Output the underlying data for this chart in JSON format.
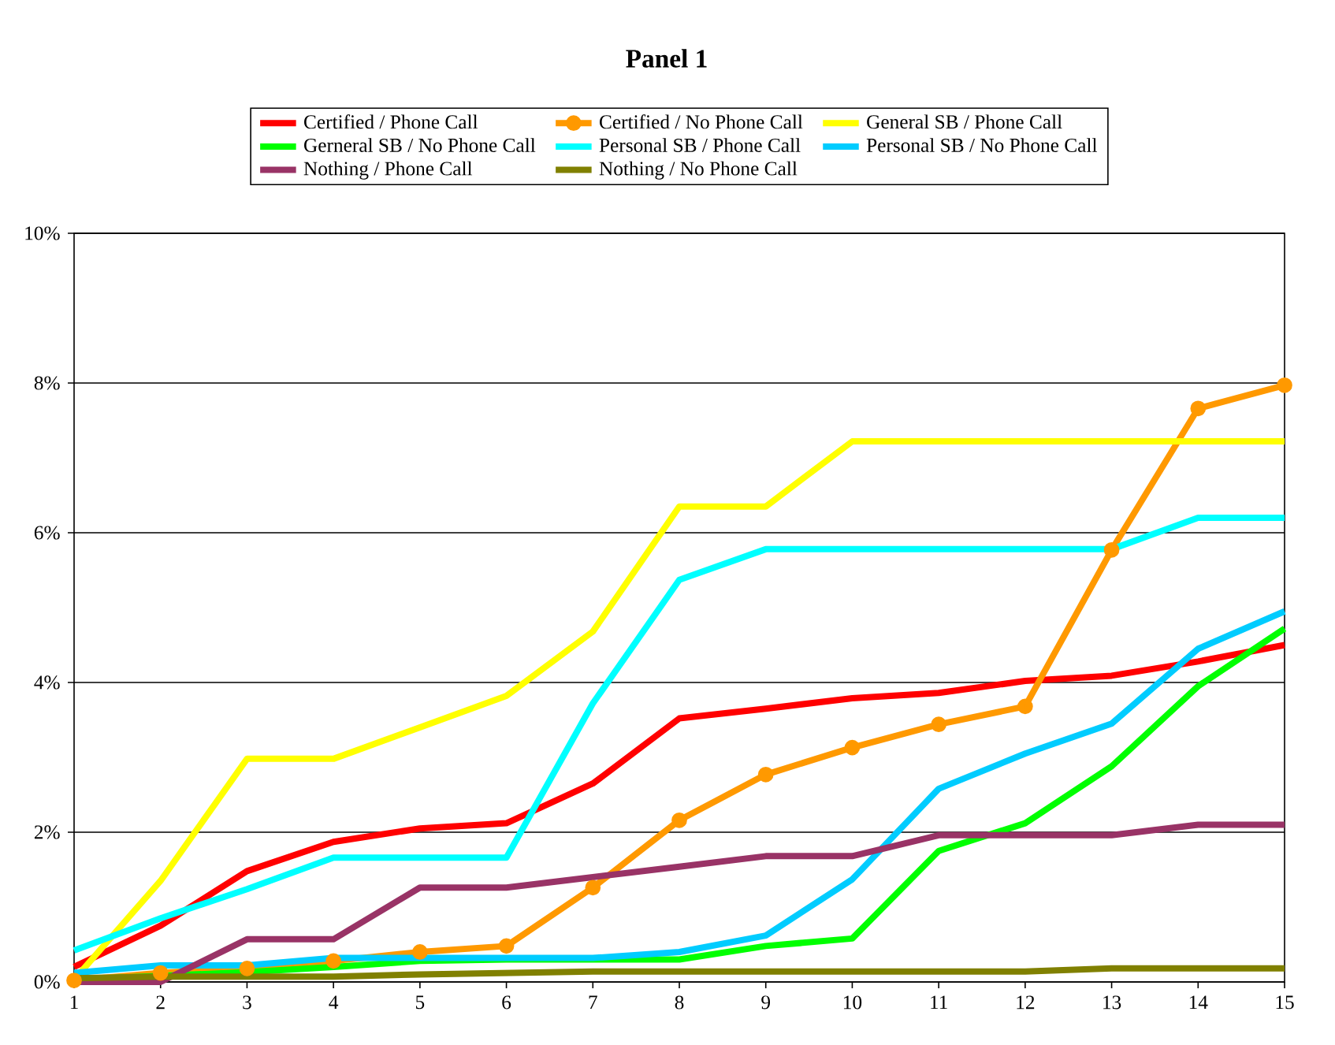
{
  "chart_data": {
    "type": "line",
    "title": "Panel 1",
    "x": [
      1,
      2,
      3,
      4,
      5,
      6,
      7,
      8,
      9,
      10,
      11,
      12,
      13,
      14,
      15
    ],
    "xlim": [
      1,
      15
    ],
    "xticks": [
      1,
      2,
      3,
      4,
      5,
      6,
      7,
      8,
      9,
      10,
      11,
      12,
      13,
      14,
      15
    ],
    "ylim": [
      0,
      10
    ],
    "yticks": [
      {
        "value": 0,
        "label": "0%"
      },
      {
        "value": 2,
        "label": "2%"
      },
      {
        "value": 4,
        "label": "4%"
      },
      {
        "value": 6,
        "label": "6%"
      },
      {
        "value": 8,
        "label": "8%"
      },
      {
        "value": 10,
        "label": "10%"
      }
    ],
    "grid": "y",
    "legend": "top",
    "series": [
      {
        "name": "Certified / Phone Call",
        "color": "#ff0000",
        "values": [
          0.2,
          0.75,
          1.48,
          1.87,
          2.05,
          2.12,
          2.65,
          3.52,
          3.65,
          3.79,
          3.86,
          4.02,
          4.09,
          4.28,
          4.5
        ]
      },
      {
        "name": "Certified / No Phone Call",
        "color": "#ff9900",
        "marker": "circle",
        "values": [
          0.02,
          0.12,
          0.18,
          0.28,
          0.4,
          0.48,
          1.26,
          2.16,
          2.77,
          3.13,
          3.44,
          3.68,
          5.77,
          7.66,
          7.97
        ]
      },
      {
        "name": "General SB / Phone Call",
        "color": "#ffff00",
        "values": [
          0.03,
          1.35,
          2.98,
          2.98,
          3.4,
          3.82,
          4.68,
          6.35,
          6.35,
          7.22,
          7.22,
          7.22,
          7.22,
          7.22,
          7.22
        ]
      },
      {
        "name": "Gerneral SB / No Phone Call",
        "color": "#00ff00",
        "values": [
          0.03,
          null,
          0.13,
          0.2,
          0.28,
          0.3,
          0.3,
          0.3,
          0.48,
          0.58,
          1.75,
          2.12,
          2.88,
          3.95,
          4.72
        ]
      },
      {
        "name": "Personal SB / Phone Call",
        "color": "#00ffff",
        "values": [
          0.42,
          0.85,
          1.24,
          1.66,
          1.66,
          1.66,
          3.72,
          5.37,
          5.78,
          5.78,
          5.78,
          5.78,
          5.78,
          6.2,
          6.2
        ]
      },
      {
        "name": "Personal SB / No Phone Call",
        "color": "#00ccff",
        "values": [
          0.12,
          0.22,
          0.22,
          0.32,
          0.32,
          0.32,
          0.32,
          0.4,
          0.62,
          1.37,
          2.58,
          3.05,
          3.45,
          4.45,
          4.95
        ]
      },
      {
        "name": "Nothing / Phone Call",
        "color": "#993366",
        "values": [
          0,
          0,
          0.57,
          0.57,
          1.26,
          1.26,
          1.4,
          1.54,
          1.68,
          1.68,
          1.96,
          1.96,
          1.96,
          2.1,
          2.1
        ]
      },
      {
        "name": "Nothing / No Phone Call",
        "color": "#808000",
        "values": [
          0.05,
          0.07,
          0.07,
          0.07,
          0.1,
          0.12,
          0.14,
          0.14,
          0.14,
          0.14,
          0.14,
          0.14,
          0.18,
          0.18,
          0.18
        ]
      }
    ]
  }
}
